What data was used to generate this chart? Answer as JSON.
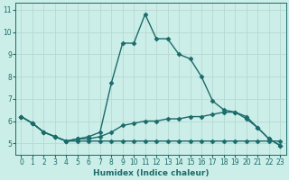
{
  "title": "",
  "xlabel": "Humidex (Indice chaleur)",
  "bg_color": "#cceee8",
  "line_color": "#1a6b6b",
  "grid_color": "#b8d8d2",
  "xlim": [
    -0.5,
    23.5
  ],
  "ylim": [
    4.5,
    11.3
  ],
  "xticks": [
    0,
    1,
    2,
    3,
    4,
    5,
    6,
    7,
    8,
    9,
    10,
    11,
    12,
    13,
    14,
    15,
    16,
    17,
    18,
    19,
    20,
    21,
    22,
    23
  ],
  "yticks": [
    5,
    6,
    7,
    8,
    9,
    10,
    11
  ],
  "lines": [
    {
      "x": [
        0,
        1,
        2,
        3,
        4,
        5,
        6,
        7,
        8,
        9,
        10,
        11,
        12,
        13,
        14,
        15,
        16,
        17,
        18,
        19,
        20,
        21,
        22,
        23
      ],
      "y": [
        6.2,
        5.9,
        5.5,
        5.3,
        5.1,
        5.2,
        5.3,
        5.5,
        7.7,
        9.5,
        9.5,
        10.8,
        9.7,
        9.7,
        9.0,
        8.8,
        8.0,
        6.9,
        6.5,
        6.4,
        6.2,
        5.7,
        5.2,
        4.9
      ]
    },
    {
      "x": [
        0,
        1,
        2,
        3,
        4,
        5,
        6,
        7,
        8,
        9,
        10,
        11,
        12,
        13,
        14,
        15,
        16,
        17,
        18,
        19,
        20,
        21,
        22,
        23
      ],
      "y": [
        6.2,
        5.9,
        5.5,
        5.3,
        5.1,
        5.2,
        5.2,
        5.3,
        5.5,
        5.8,
        5.9,
        6.0,
        6.0,
        6.1,
        6.1,
        6.2,
        6.2,
        6.3,
        6.4,
        6.4,
        6.1,
        5.7,
        5.2,
        4.9
      ]
    },
    {
      "x": [
        0,
        1,
        2,
        3,
        4,
        5,
        6,
        7,
        8,
        9,
        10,
        11,
        12,
        13,
        14,
        15,
        16,
        17,
        18,
        19,
        20,
        21,
        22,
        23
      ],
      "y": [
        6.2,
        5.9,
        5.5,
        5.3,
        5.1,
        5.1,
        5.1,
        5.1,
        5.1,
        5.1,
        5.1,
        5.1,
        5.1,
        5.1,
        5.1,
        5.1,
        5.1,
        5.1,
        5.1,
        5.1,
        5.1,
        5.1,
        5.1,
        5.1
      ]
    }
  ],
  "marker": "D",
  "markersize": 2.5,
  "linewidth": 1.0,
  "xlabel_fontsize": 6.5,
  "tick_fontsize": 5.5
}
